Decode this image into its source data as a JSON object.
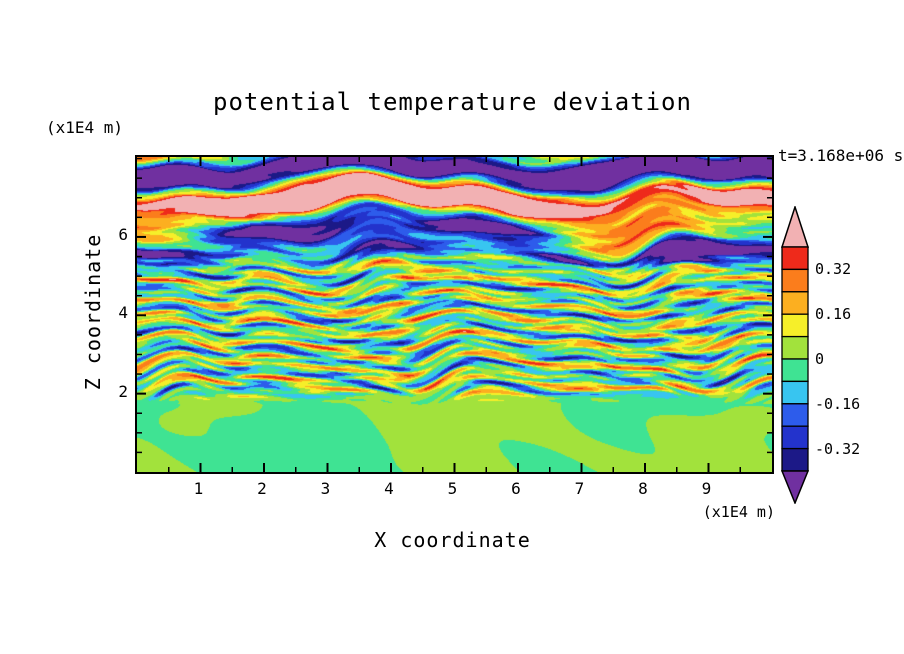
{
  "title": "potential temperature deviation",
  "annotations": {
    "z_axis_unit": "(x1E4 m)",
    "x_axis_unit": "(x1E4 m)",
    "timestamp": "t=3.168e+06 s"
  },
  "axes": {
    "x_label": "X coordinate",
    "z_label": "Z coordinate",
    "x_range": [
      0,
      10
    ],
    "z_range": [
      0,
      8.04
    ],
    "x_tick_values": [
      1,
      2,
      3,
      4,
      5,
      6,
      7,
      8,
      9
    ],
    "x_tick_labels": [
      "1",
      "2",
      "3",
      "4",
      "5",
      "6",
      "7",
      "8",
      "9"
    ],
    "z_tick_values": [
      2,
      4,
      6
    ],
    "z_tick_labels": [
      "2",
      "4",
      "6"
    ],
    "minor_tick_step": 0.5
  },
  "colorbar": {
    "labels": [
      "0.32",
      "0.16",
      "0",
      "-0.16",
      "-0.32"
    ],
    "label_level_values": [
      0.32,
      0.16,
      0,
      -0.16,
      -0.32
    ]
  },
  "chart_data": {
    "type": "heatmap",
    "title": "potential temperature deviation",
    "xlabel": "X coordinate (x1E4 m)",
    "ylabel": "Z coordinate (x1E4 m)",
    "x_range": [
      0,
      10
    ],
    "z_range": [
      0,
      8.04
    ],
    "timestamp": "t=3.168e+06 s",
    "contour_levels": [
      -0.4,
      -0.32,
      -0.24,
      -0.16,
      -0.08,
      0,
      0.08,
      0.16,
      0.24,
      0.32,
      0.4
    ],
    "colors_low_to_high": [
      "#7030a0",
      "#1c1987",
      "#2333cc",
      "#2d5ceb",
      "#38c5f0",
      "#3fe393",
      "#a2e23c",
      "#f6ef29",
      "#fcaf20",
      "#fb7d1c",
      "#ee2a1b",
      "#f2b1b3"
    ],
    "field_description": "Horizontally stratified turbulent potential-temperature deviation field: near-zero green blobs below z=2, fine multicoloured layered filaments between z=2 and z=5, thick large-amplitude pink/purple/navy wave bands above z=5 with a pale pink band along the top edge."
  }
}
